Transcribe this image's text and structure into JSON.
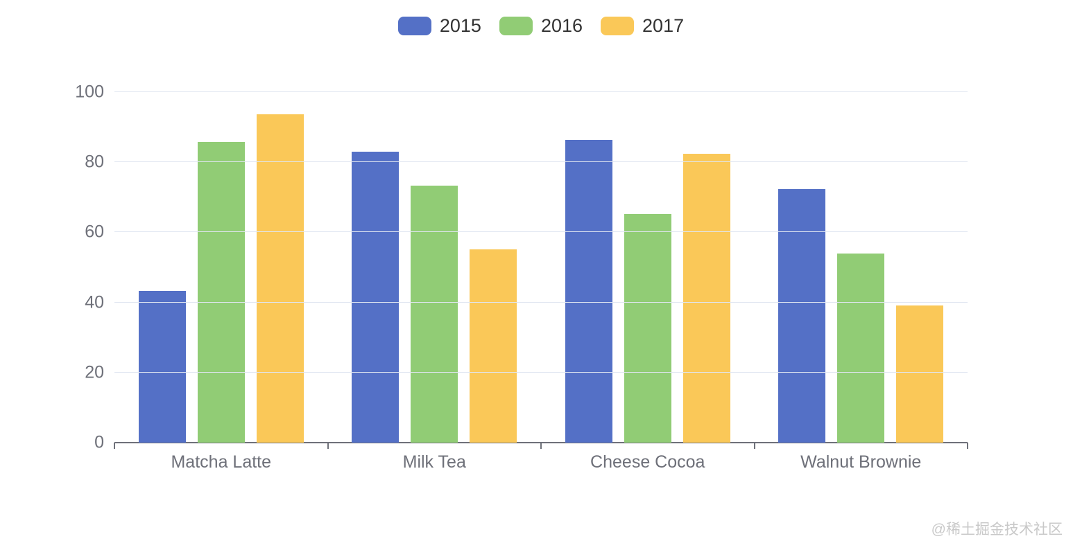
{
  "legend": {
    "items": [
      {
        "label": "2015",
        "color": "#5470C6"
      },
      {
        "label": "2016",
        "color": "#91CC75"
      },
      {
        "label": "2017",
        "color": "#FAC858"
      }
    ]
  },
  "chart_data": {
    "type": "bar",
    "title": "",
    "xlabel": "",
    "ylabel": "",
    "categories": [
      "Matcha Latte",
      "Milk Tea",
      "Cheese Cocoa",
      "Walnut Brownie"
    ],
    "series": [
      {
        "name": "2015",
        "color": "#5470C6",
        "values": [
          43.3,
          83.1,
          86.4,
          72.4
        ]
      },
      {
        "name": "2016",
        "color": "#91CC75",
        "values": [
          85.8,
          73.4,
          65.2,
          53.9
        ]
      },
      {
        "name": "2017",
        "color": "#FAC858",
        "values": [
          93.7,
          55.1,
          82.5,
          39.1
        ]
      }
    ],
    "ylim": [
      0,
      100
    ],
    "yticks": [
      0,
      20,
      40,
      60,
      80,
      100
    ],
    "grid": true,
    "legend_position": "top-center"
  },
  "watermark": {
    "text": "@稀土掘金技术社区"
  },
  "colors": {
    "background": "#FFFFFF",
    "grid_line": "#E0E6F1",
    "axis_line": "#6E7079",
    "axis_label": "#6E7079",
    "legend_text": "#333333",
    "watermark": "#C9C9C9"
  }
}
